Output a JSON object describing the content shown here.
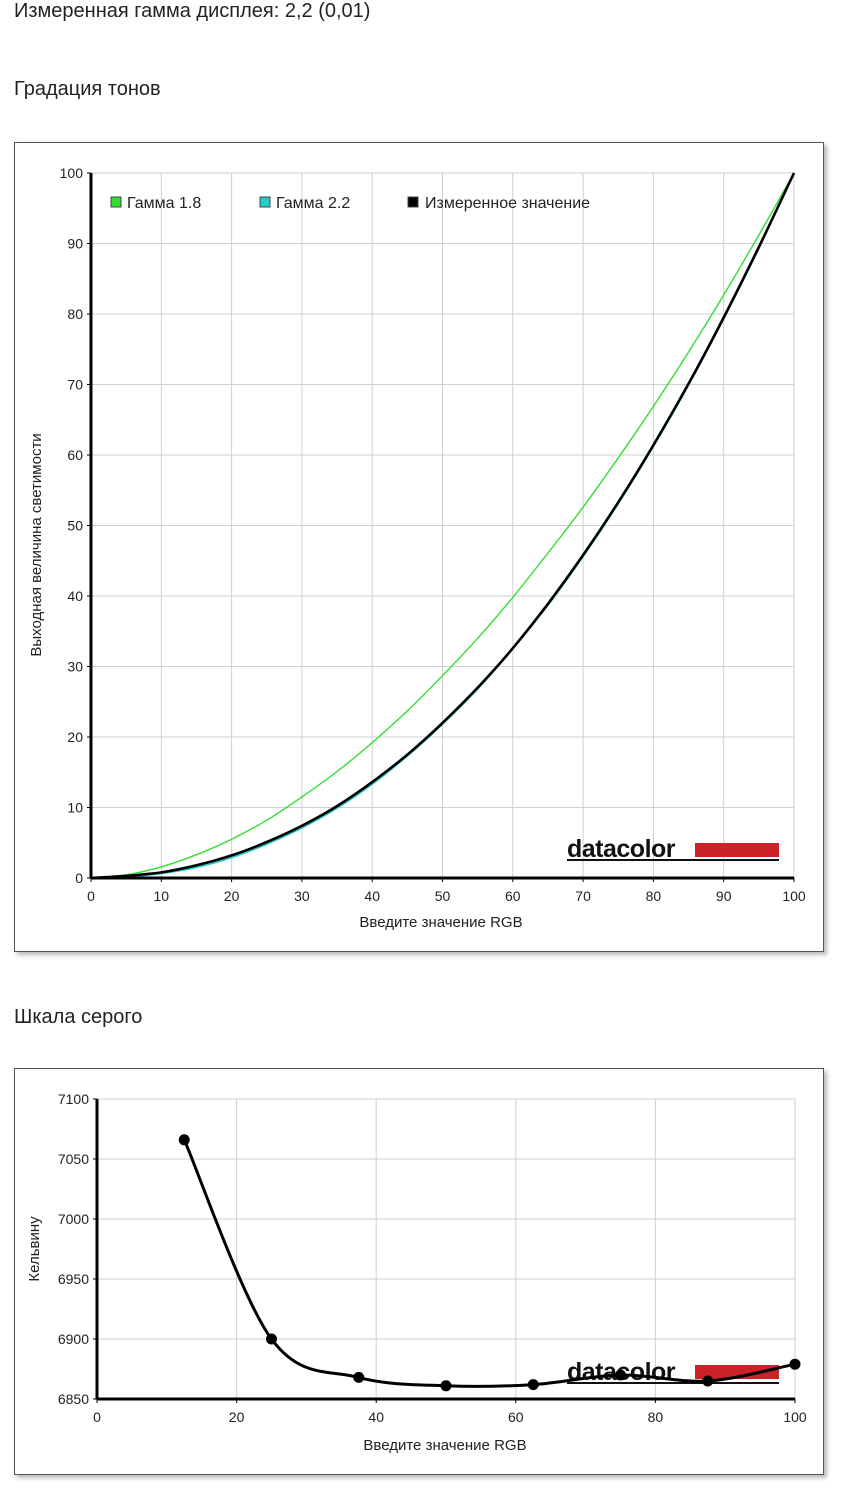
{
  "header": {
    "measured_gamma": "Измеренная гамма дисплея: 2,2 (0,01)",
    "tone_title": "Градация тонов",
    "gray_title": "Шкала серого"
  },
  "brand": {
    "logo_text": "datacolor",
    "accent": "#cc2229"
  },
  "chart_data": [
    {
      "type": "line",
      "xlabel": "Введите значение RGB",
      "ylabel": "Выходная величина светимости",
      "xlim": [
        0,
        100
      ],
      "ylim": [
        0,
        100
      ],
      "xticks": [
        0,
        10,
        20,
        30,
        40,
        50,
        60,
        70,
        80,
        90,
        100
      ],
      "yticks": [
        0,
        10,
        20,
        30,
        40,
        50,
        60,
        70,
        80,
        90,
        100
      ],
      "grid": true,
      "legend_position": "top-left",
      "series": [
        {
          "name": "Гамма 1.8",
          "color": "#33dd33",
          "x": [
            0,
            5,
            10,
            15,
            20,
            25,
            30,
            35,
            40,
            45,
            50,
            55,
            60,
            65,
            70,
            75,
            80,
            85,
            90,
            95,
            100
          ],
          "y": [
            0,
            0.46,
            1.58,
            3.3,
            5.5,
            8.2,
            11.5,
            15.1,
            19.2,
            23.7,
            28.7,
            34.0,
            39.8,
            46.1,
            52.6,
            59.6,
            66.9,
            74.6,
            82.7,
            91.2,
            100
          ]
        },
        {
          "name": "Гамма 2.2",
          "color": "#22cccc",
          "x": [
            0,
            5,
            10,
            15,
            20,
            25,
            30,
            35,
            40,
            45,
            50,
            55,
            60,
            65,
            70,
            75,
            80,
            85,
            90,
            95,
            100
          ],
          "y": [
            0,
            0.14,
            0.63,
            1.5,
            2.9,
            4.8,
            7.1,
            9.9,
            13.3,
            17.3,
            21.8,
            26.8,
            32.5,
            38.7,
            45.6,
            53.1,
            61.2,
            69.9,
            79.3,
            89.3,
            100
          ]
        },
        {
          "name": "Измеренное значение",
          "color": "#000000",
          "x": [
            0,
            5,
            10,
            15,
            20,
            25,
            30,
            35,
            40,
            45,
            50,
            55,
            60,
            65,
            70,
            75,
            80,
            85,
            90,
            95,
            100
          ],
          "y": [
            0,
            0.3,
            0.8,
            1.8,
            3.2,
            5.1,
            7.4,
            10.2,
            13.6,
            17.5,
            22.0,
            27.0,
            32.6,
            38.9,
            45.8,
            53.3,
            61.4,
            70.1,
            79.5,
            89.5,
            100
          ]
        }
      ]
    },
    {
      "type": "line",
      "xlabel": "Введите значение RGB",
      "ylabel": "Кельвину",
      "xlim": [
        0,
        100
      ],
      "ylim": [
        6850,
        7100
      ],
      "xticks": [
        0,
        20,
        40,
        60,
        80,
        100
      ],
      "yticks": [
        6850,
        6900,
        6950,
        7000,
        7050,
        7100
      ],
      "grid": true,
      "series": [
        {
          "color": "#000000",
          "x": [
            12.5,
            25,
            37.5,
            50,
            62.5,
            75,
            87.5,
            100
          ],
          "y": [
            7066,
            6900,
            6868,
            6861,
            6862,
            6870,
            6865,
            6879
          ]
        }
      ]
    }
  ]
}
